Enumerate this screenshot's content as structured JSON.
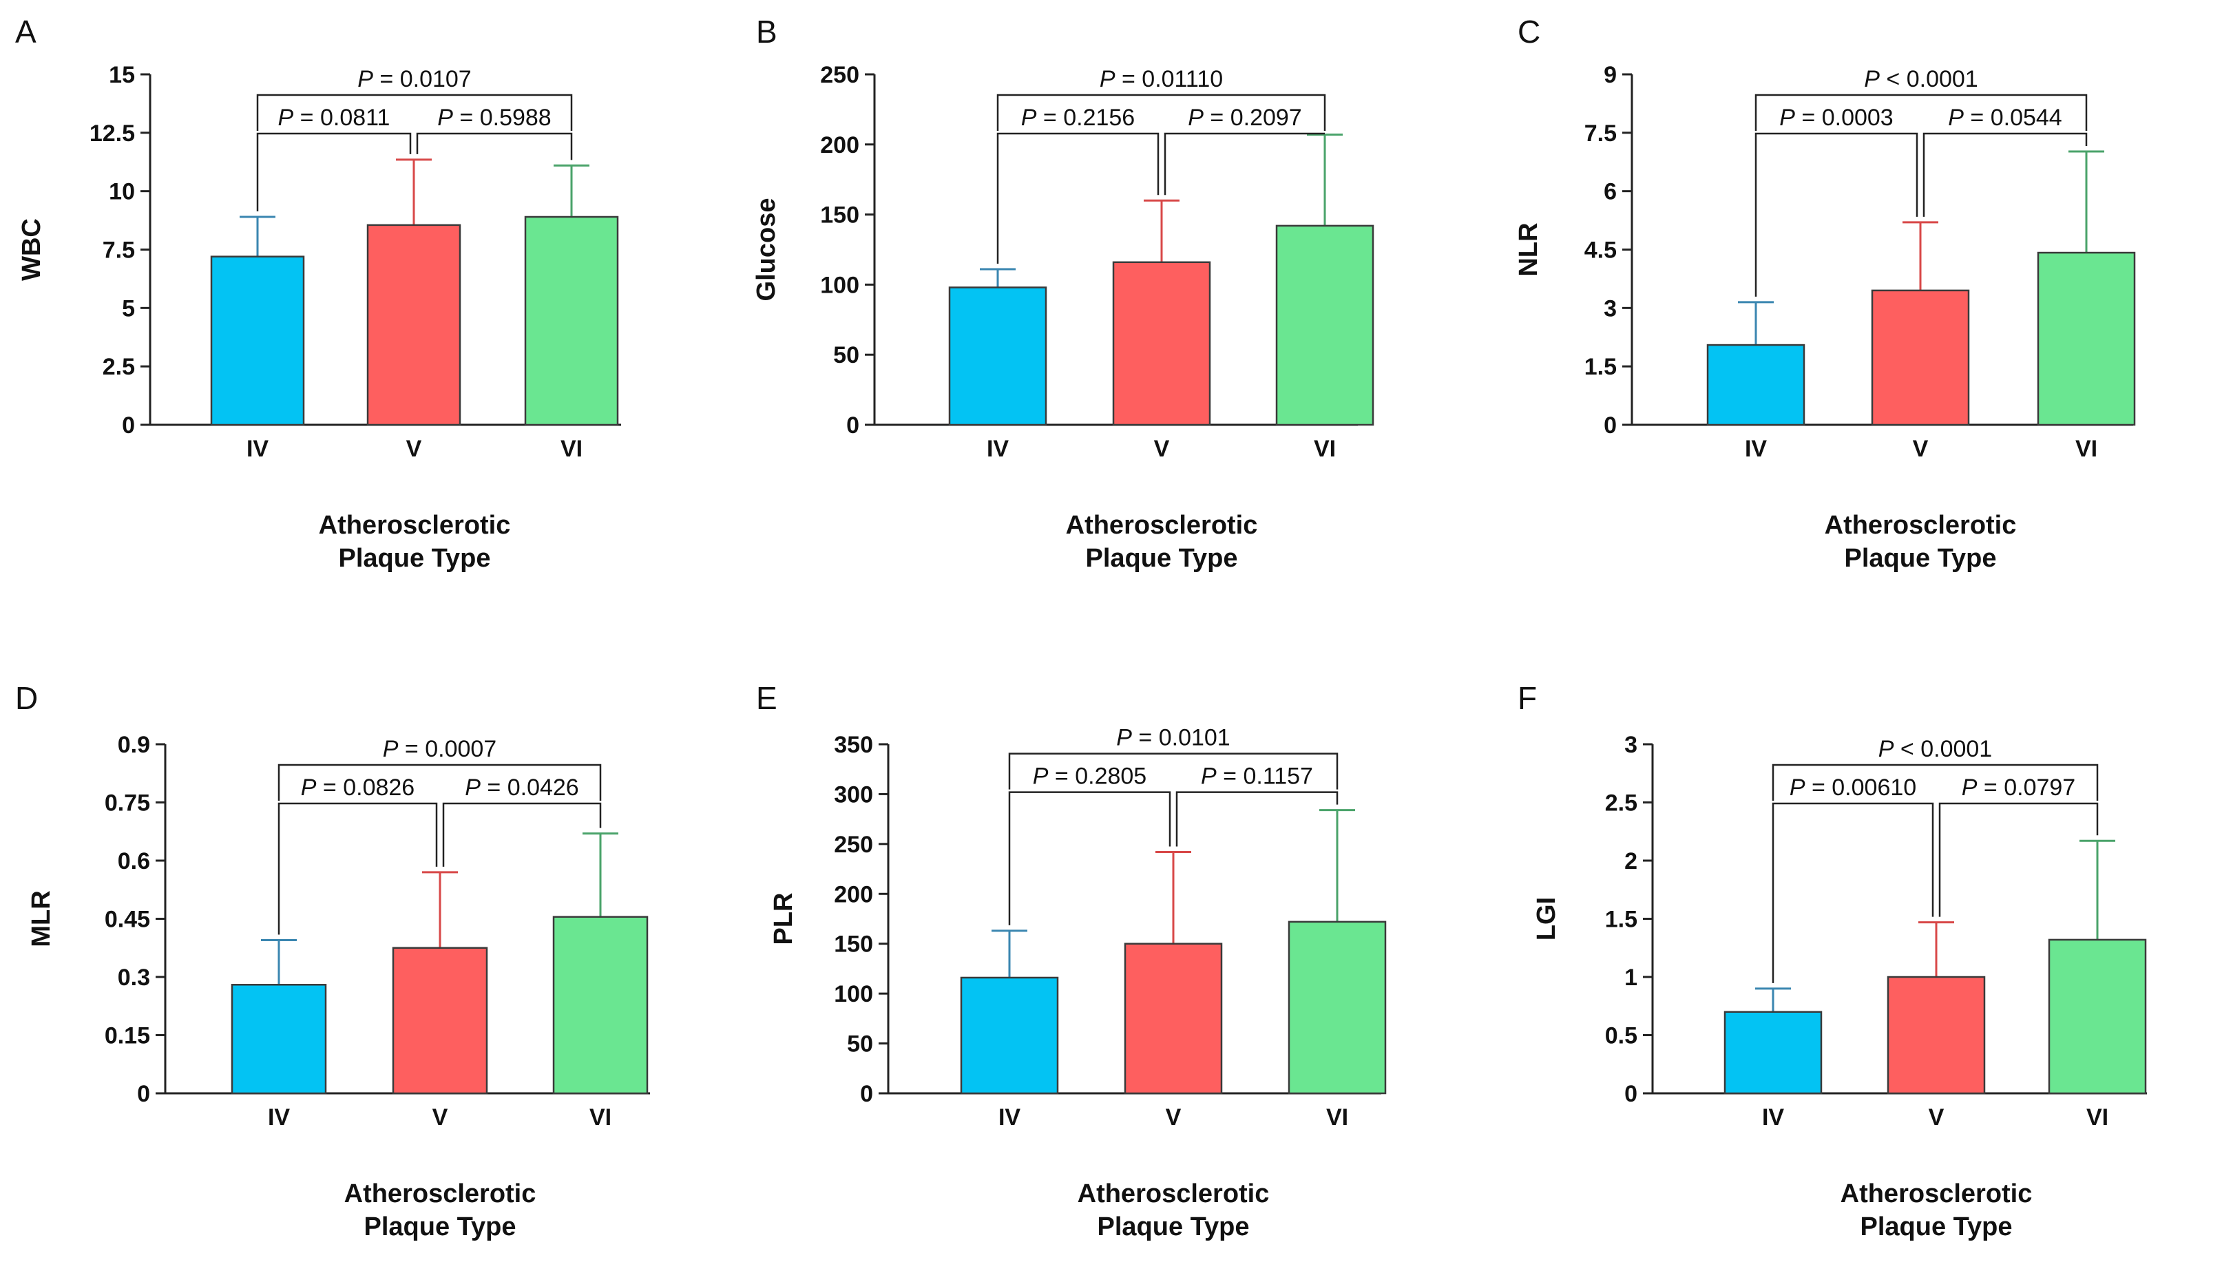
{
  "figure": {
    "colors": {
      "IV": "#03c3f3",
      "V": "#fe5f5f",
      "VI": "#6ae691",
      "axis": "#222222",
      "text": "#111111"
    },
    "error_colors": {
      "IV": "#3a86b0",
      "V": "#d84848",
      "VI": "#4aa36a"
    }
  },
  "chart_data": [
    {
      "type": "bar",
      "letter": "A",
      "ylabel": "WBC",
      "xlabel": [
        "Atherosclerotic",
        "Plaque Type"
      ],
      "categories": [
        "IV",
        "V",
        "VI"
      ],
      "values": [
        7.2,
        8.55,
        8.9
      ],
      "errors": [
        1.7,
        2.8,
        2.2
      ],
      "ylim": [
        0,
        15
      ],
      "ticks": [
        "0",
        "2.5",
        "5",
        "7.5",
        "10",
        "12.5",
        "15"
      ],
      "comparisons": [
        {
          "from": 0,
          "to": 1,
          "sym": "P",
          "text": " = 0.0811",
          "level": 1
        },
        {
          "from": 1,
          "to": 2,
          "sym": "P",
          "text": " = 0.5988",
          "level": 1
        },
        {
          "from": 0,
          "to": 2,
          "sym": "P",
          "text": " = 0.0107",
          "level": 2
        }
      ]
    },
    {
      "type": "bar",
      "letter": "B",
      "ylabel": "Glucose",
      "xlabel": [
        "Atherosclerotic",
        "Plaque Type"
      ],
      "categories": [
        "IV",
        "V",
        "VI"
      ],
      "values": [
        98,
        116,
        142
      ],
      "errors": [
        13,
        44,
        65
      ],
      "ylim": [
        0,
        250
      ],
      "ticks": [
        "0",
        "50",
        "100",
        "150",
        "200",
        "250"
      ],
      "comparisons": [
        {
          "from": 0,
          "to": 1,
          "sym": "P",
          "text": " = 0.2156",
          "level": 1
        },
        {
          "from": 1,
          "to": 2,
          "sym": "P",
          "text": " = 0.2097",
          "level": 1
        },
        {
          "from": 0,
          "to": 2,
          "sym": "P",
          "text": " = 0.01110",
          "level": 2
        }
      ]
    },
    {
      "type": "bar",
      "letter": "C",
      "ylabel": "NLR",
      "xlabel": [
        "Atherosclerotic",
        "Plaque Type"
      ],
      "categories": [
        "IV",
        "V",
        "VI"
      ],
      "values": [
        2.05,
        3.45,
        4.42
      ],
      "errors": [
        1.1,
        1.75,
        2.6
      ],
      "ylim": [
        0,
        9
      ],
      "ticks": [
        "0",
        "1.5",
        "3",
        "4.5",
        "6",
        "7.5",
        "9"
      ],
      "comparisons": [
        {
          "from": 0,
          "to": 1,
          "sym": "P",
          "text": " = 0.0003",
          "level": 1
        },
        {
          "from": 1,
          "to": 2,
          "sym": "P",
          "text": " = 0.0544",
          "level": 1
        },
        {
          "from": 0,
          "to": 2,
          "sym": "P",
          "text": " < 0.0001",
          "level": 2
        }
      ]
    },
    {
      "type": "bar",
      "letter": "D",
      "ylabel": "MLR",
      "xlabel": [
        "Atherosclerotic",
        "Plaque Type"
      ],
      "categories": [
        "IV",
        "V",
        "VI"
      ],
      "values": [
        0.28,
        0.375,
        0.455
      ],
      "errors": [
        0.115,
        0.195,
        0.215
      ],
      "ylim": [
        0,
        0.9
      ],
      "ticks": [
        "0",
        "0.15",
        "0.3",
        "0.45",
        "0.6",
        "0.75",
        "0.9"
      ],
      "comparisons": [
        {
          "from": 0,
          "to": 1,
          "sym": "P",
          "text": " = 0.0826",
          "level": 1
        },
        {
          "from": 1,
          "to": 2,
          "sym": "P",
          "text": " = 0.0426",
          "level": 1
        },
        {
          "from": 0,
          "to": 2,
          "sym": "P",
          "text": " = 0.0007",
          "level": 2
        }
      ]
    },
    {
      "type": "bar",
      "letter": "E",
      "ylabel": "PLR",
      "xlabel": [
        "Atherosclerotic",
        "Plaque Type"
      ],
      "categories": [
        "IV",
        "V",
        "VI"
      ],
      "values": [
        116,
        150,
        172
      ],
      "errors": [
        47,
        92,
        112
      ],
      "ylim": [
        0,
        350
      ],
      "ticks": [
        "0",
        "50",
        "100",
        "150",
        "200",
        "250",
        "300",
        "350"
      ],
      "comparisons": [
        {
          "from": 0,
          "to": 1,
          "sym": "P",
          "text": " = 0.2805",
          "level": 1
        },
        {
          "from": 1,
          "to": 2,
          "sym": "P",
          "text": " = 0.1157",
          "level": 1
        },
        {
          "from": 0,
          "to": 2,
          "sym": "P",
          "text": " = 0.0101",
          "level": 2
        }
      ]
    },
    {
      "type": "bar",
      "letter": "F",
      "ylabel": "LGI",
      "xlabel": [
        "Atherosclerotic",
        "Plaque Type"
      ],
      "categories": [
        "IV",
        "V",
        "VI"
      ],
      "values": [
        0.7,
        1.0,
        1.32
      ],
      "errors": [
        0.2,
        0.47,
        0.85
      ],
      "ylim": [
        0,
        3
      ],
      "ticks": [
        "0",
        "0.5",
        "1",
        "1.5",
        "2",
        "2.5",
        "3"
      ],
      "comparisons": [
        {
          "from": 0,
          "to": 1,
          "sym": "P",
          "text": " = 0.00610",
          "level": 1
        },
        {
          "from": 1,
          "to": 2,
          "sym": "P",
          "text": " = 0.0797",
          "level": 1
        },
        {
          "from": 0,
          "to": 2,
          "sym": "P",
          "text": " < 0.0001",
          "level": 2
        }
      ]
    }
  ]
}
